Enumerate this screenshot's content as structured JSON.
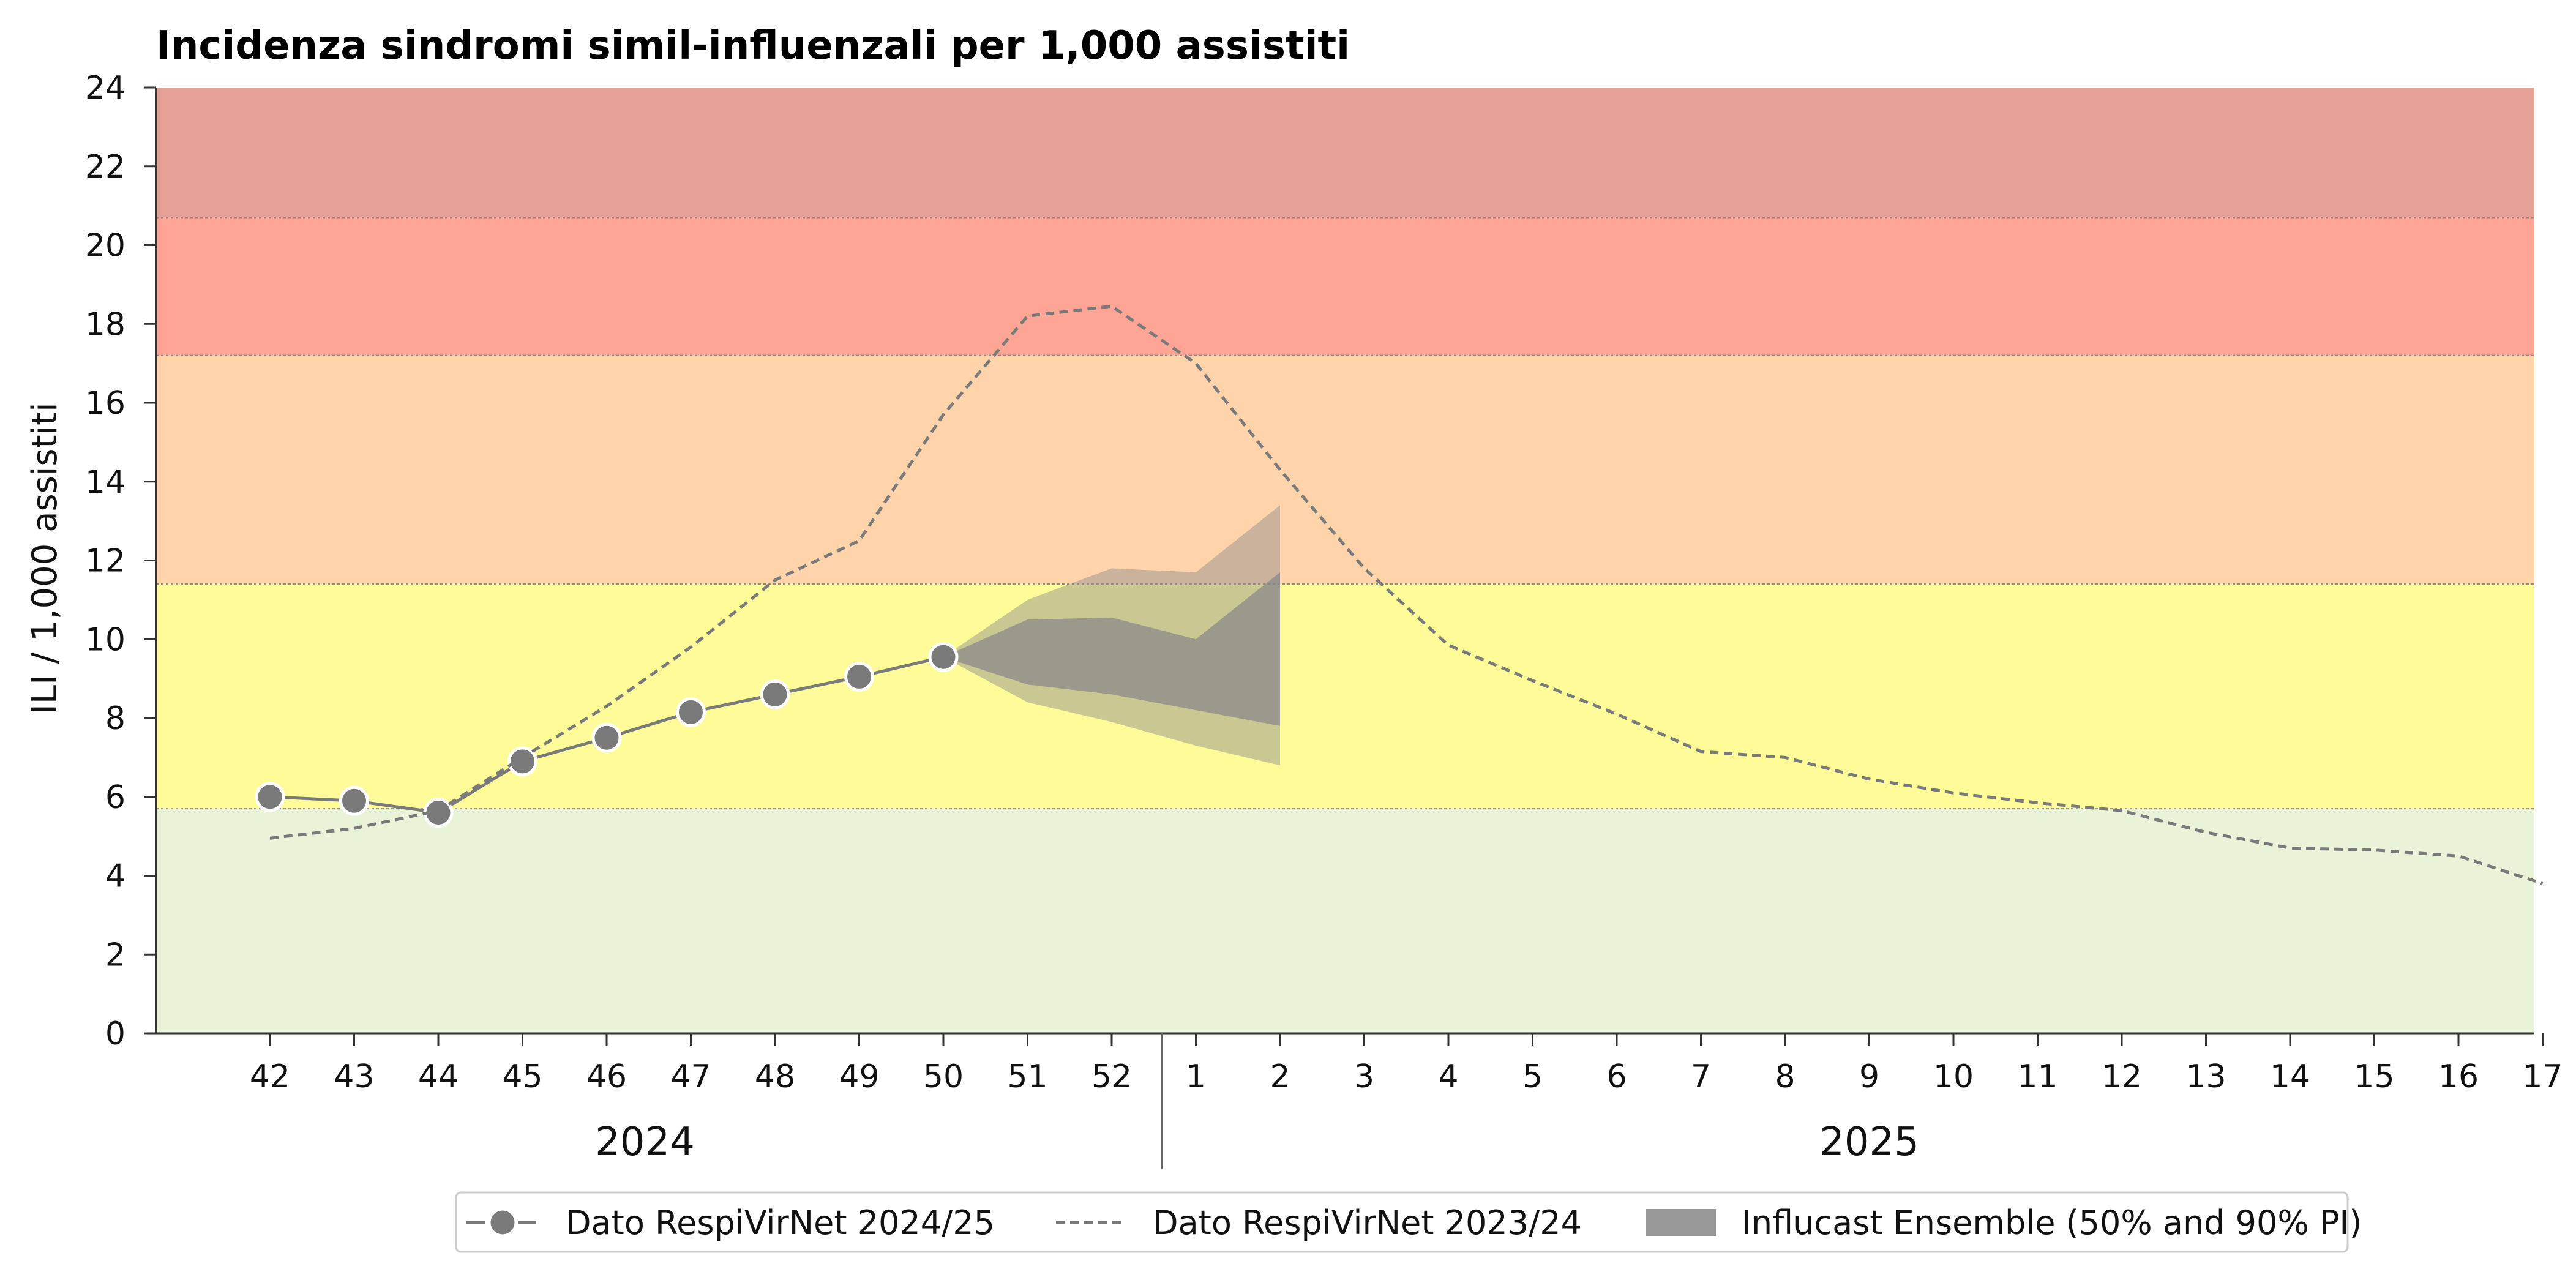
{
  "chart_data": {
    "type": "line",
    "title": "Incidenza sindromi simil-influenzali per 1,000 assistiti",
    "xlabel": "",
    "ylabel": "ILI / 1,000 assistiti",
    "ylim": [
      0,
      24
    ],
    "yticks": [
      0,
      2,
      4,
      6,
      8,
      10,
      12,
      14,
      16,
      18,
      20,
      22,
      24
    ],
    "x": [
      "42",
      "43",
      "44",
      "45",
      "46",
      "47",
      "48",
      "49",
      "50",
      "51",
      "52",
      "1",
      "2",
      "3",
      "4",
      "5",
      "6",
      "7",
      "8",
      "9",
      "10",
      "11",
      "12",
      "13",
      "14",
      "15",
      "16",
      "17"
    ],
    "years": [
      {
        "label": "2024",
        "from": "42",
        "to": "52"
      },
      {
        "label": "2025",
        "from": "1",
        "to": "17"
      }
    ],
    "bands": [
      {
        "from": 0,
        "to": 5.7,
        "color": "#e8f3d8"
      },
      {
        "from": 5.7,
        "to": 11.4,
        "color": "#fffb99"
      },
      {
        "from": 11.4,
        "to": 17.2,
        "color": "#ffd4ab"
      },
      {
        "from": 17.2,
        "to": 20.7,
        "color": "#ffa595"
      },
      {
        "from": 20.7,
        "to": 24,
        "color": "#e6a096"
      }
    ],
    "series": [
      {
        "name": "Dato RespiVirNet 2024/25",
        "style": "solid-markers",
        "color": "#7a7a7a",
        "x": [
          "42",
          "43",
          "44",
          "45",
          "46",
          "47",
          "48",
          "49",
          "50"
        ],
        "values": [
          6.0,
          5.9,
          5.6,
          6.9,
          7.5,
          8.15,
          8.6,
          9.05,
          9.55
        ]
      },
      {
        "name": "Dato RespiVirNet 2023/24",
        "style": "dashed",
        "color": "#7a7a7a",
        "x": [
          "42",
          "43",
          "44",
          "45",
          "46",
          "47",
          "48",
          "49",
          "50",
          "51",
          "52",
          "1",
          "2",
          "3",
          "4",
          "5",
          "6",
          "7",
          "8",
          "9",
          "10",
          "11",
          "12",
          "13",
          "14",
          "15",
          "16",
          "17"
        ],
        "values": [
          4.95,
          5.2,
          5.65,
          7.0,
          8.3,
          9.8,
          11.5,
          12.5,
          15.7,
          18.2,
          18.45,
          17.0,
          14.3,
          11.8,
          9.85,
          8.95,
          8.1,
          7.15,
          7.0,
          6.45,
          6.1,
          5.85,
          5.65,
          5.1,
          4.7,
          4.65,
          4.5,
          3.8
        ]
      }
    ],
    "forecast": {
      "name": "Influcast Ensemble (50% and 90% PI)",
      "color": "#8a8a8a",
      "x": [
        "50",
        "51",
        "52",
        "1",
        "2"
      ],
      "pi90_upper": [
        9.55,
        11.0,
        11.8,
        11.7,
        13.4
      ],
      "pi90_lower": [
        9.55,
        8.4,
        7.9,
        7.3,
        6.8
      ],
      "pi50_upper": [
        9.55,
        10.5,
        10.55,
        10.0,
        11.7
      ],
      "pi50_lower": [
        9.55,
        8.85,
        8.6,
        8.2,
        7.8
      ]
    },
    "legend": {
      "placement": "bottom-center",
      "items": [
        {
          "label": "Dato RespiVirNet 2024/25",
          "kind": "line-marker"
        },
        {
          "label": "Dato RespiVirNet 2023/24",
          "kind": "dashed"
        },
        {
          "label": "Influcast Ensemble (50% and 90% PI)",
          "kind": "patch"
        }
      ]
    },
    "grid": false
  }
}
